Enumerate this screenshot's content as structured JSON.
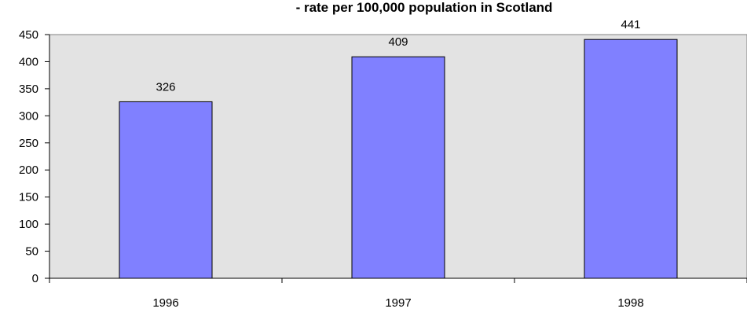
{
  "chart_data": {
    "type": "bar",
    "title": "- rate per 100,000 population in Scotland",
    "categories": [
      "1996",
      "1997",
      "1998"
    ],
    "values": [
      326,
      409,
      441
    ],
    "data_labels": [
      "326",
      "409",
      "441"
    ],
    "ylim": [
      0,
      450
    ],
    "yticks": [
      0,
      50,
      100,
      150,
      200,
      250,
      300,
      350,
      400,
      450
    ],
    "grid": false,
    "legend": "none",
    "colors": {
      "bar_fill": "#8080ff",
      "bar_stroke": "#000000",
      "plot_background": "#e3e3e3",
      "axis": "#000000"
    }
  }
}
